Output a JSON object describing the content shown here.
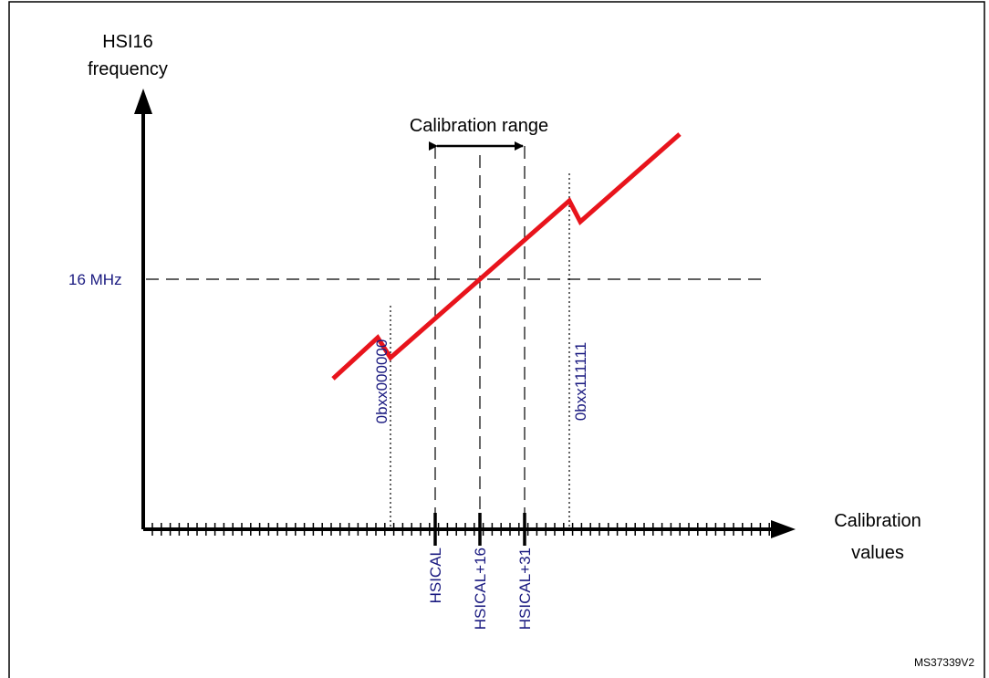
{
  "axis": {
    "y_label": [
      "HSI16",
      "frequency"
    ],
    "x_label": [
      "Calibration",
      "values"
    ]
  },
  "range_label": "Calibration range",
  "frequency_label": "16 MHz",
  "marker_labels": [
    "0bxx000000",
    "0bxx111111"
  ],
  "tick_labels": [
    "HSICAL",
    "HSICAL+16",
    "HSICAL+31"
  ],
  "figure_id": "MS37339V2"
}
